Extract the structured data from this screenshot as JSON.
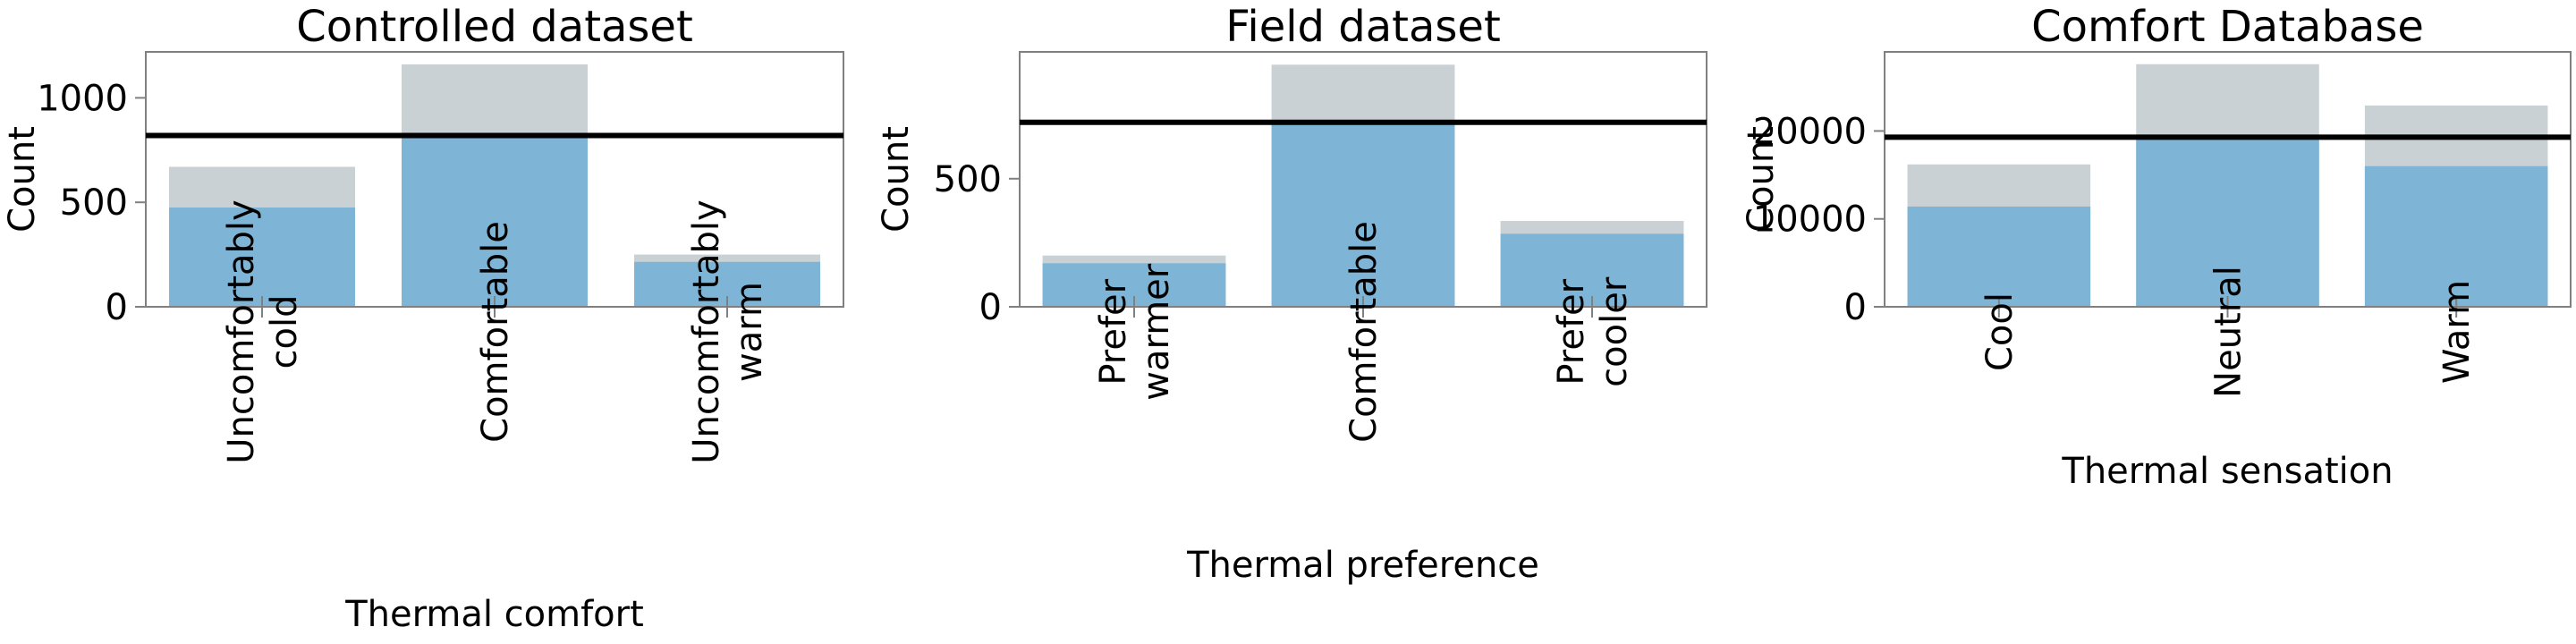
{
  "chart_data": [
    {
      "type": "bar",
      "title": "Controlled dataset",
      "xlabel": "Thermal comfort",
      "ylabel": "Count",
      "categories": [
        [
          "Uncomfortably",
          "cold"
        ],
        [
          "Comfortable"
        ],
        [
          "Uncomfortably",
          "warm"
        ]
      ],
      "series": [
        {
          "values": [
            670,
            1160,
            250
          ]
        },
        {
          "values": [
            475,
            820,
            215
          ]
        }
      ],
      "reference_line": 820,
      "ylim": [
        0,
        1220
      ],
      "yticks": [
        0,
        500,
        1000
      ],
      "ytick_labels": [
        "0",
        "500",
        "1000"
      ]
    },
    {
      "type": "bar",
      "title": "Field dataset",
      "xlabel": "Thermal preference",
      "ylabel": "Count",
      "categories": [
        [
          "Prefer",
          "warmer"
        ],
        [
          "Comfortable"
        ],
        [
          "Prefer",
          "cooler"
        ]
      ],
      "series": [
        {
          "values": [
            200,
            945,
            335
          ]
        },
        {
          "values": [
            170,
            720,
            285
          ]
        }
      ],
      "reference_line": 720,
      "ylim": [
        0,
        995
      ],
      "yticks": [
        0,
        500
      ],
      "ytick_labels": [
        "0",
        "500"
      ]
    },
    {
      "type": "bar",
      "title": "Comfort Database",
      "xlabel": "Thermal sensation",
      "ylabel": "Count",
      "categories": [
        [
          "Cool"
        ],
        [
          "Neutral"
        ],
        [
          "Warm"
        ]
      ],
      "series": [
        {
          "values": [
            16200,
            27600,
            22900
          ]
        },
        {
          "values": [
            11400,
            19300,
            16000
          ]
        }
      ],
      "reference_line": 19300,
      "ylim": [
        0,
        29000
      ],
      "yticks": [
        0,
        10000,
        20000
      ],
      "ytick_labels": [
        "0",
        "10000",
        "20000"
      ]
    }
  ],
  "colors": {
    "total_bar": "#c9d1d4",
    "balanced_bar": "#7eb4d6",
    "reference_line": "#000000",
    "axes": "#808080"
  }
}
